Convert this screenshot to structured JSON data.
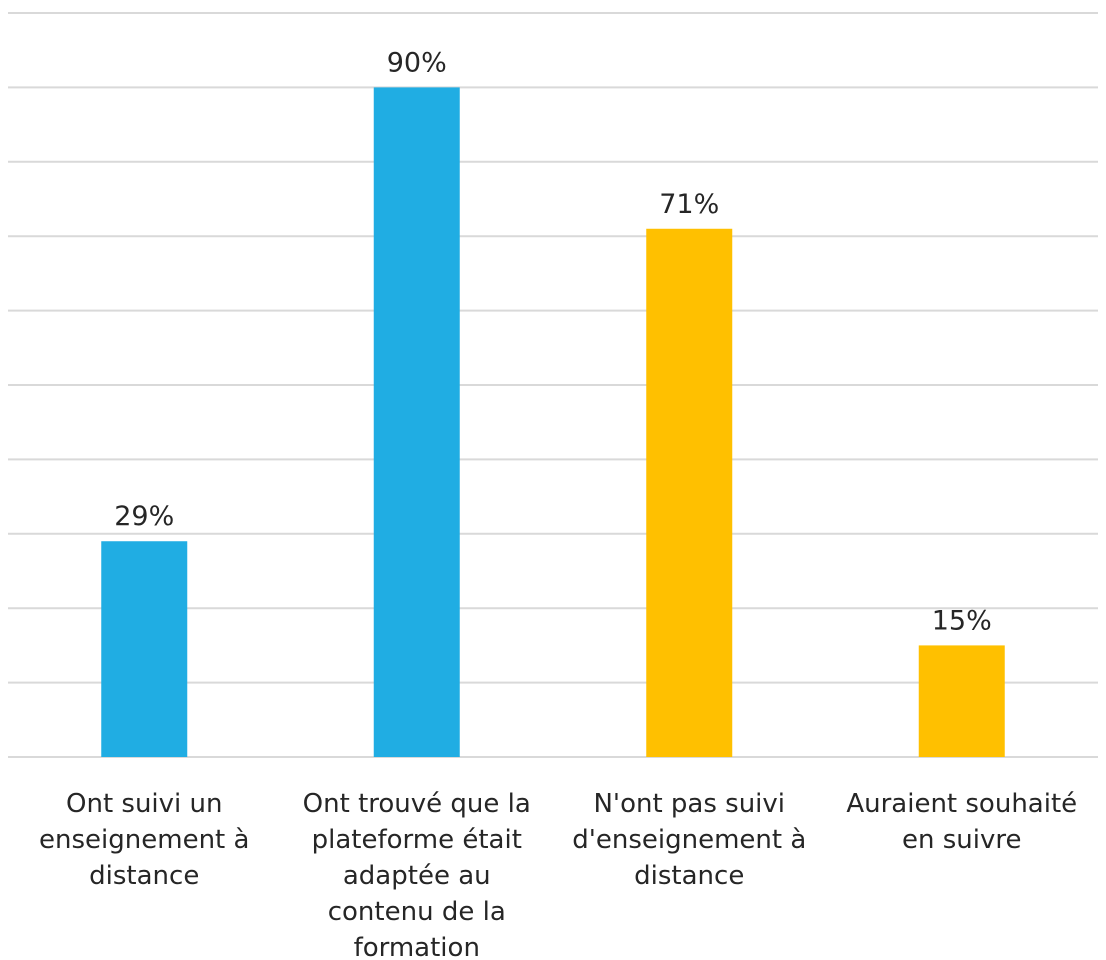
{
  "chart_data": {
    "type": "bar",
    "categories": [
      [
        "Ont suivi un",
        "enseignement à",
        "distance"
      ],
      [
        "Ont trouvé que la",
        "plateforme était",
        "adaptée au",
        "contenu de la",
        "formation"
      ],
      [
        "N'ont pas suivi",
        "d'enseignement à",
        "distance"
      ],
      [
        "Auraient souhaité",
        "en suivre"
      ]
    ],
    "values": [
      29,
      90,
      71,
      15
    ],
    "data_labels": [
      "29%",
      "90%",
      "71%",
      "15%"
    ],
    "bar_colors": [
      "#20ADE3",
      "#20ADE3",
      "#FFC000",
      "#FFC000"
    ],
    "ylim": [
      0,
      100
    ],
    "gridlines": [
      0,
      10,
      20,
      30,
      40,
      50,
      60,
      70,
      80,
      90,
      100
    ],
    "grid": true,
    "title": "",
    "xlabel": "",
    "ylabel": ""
  }
}
